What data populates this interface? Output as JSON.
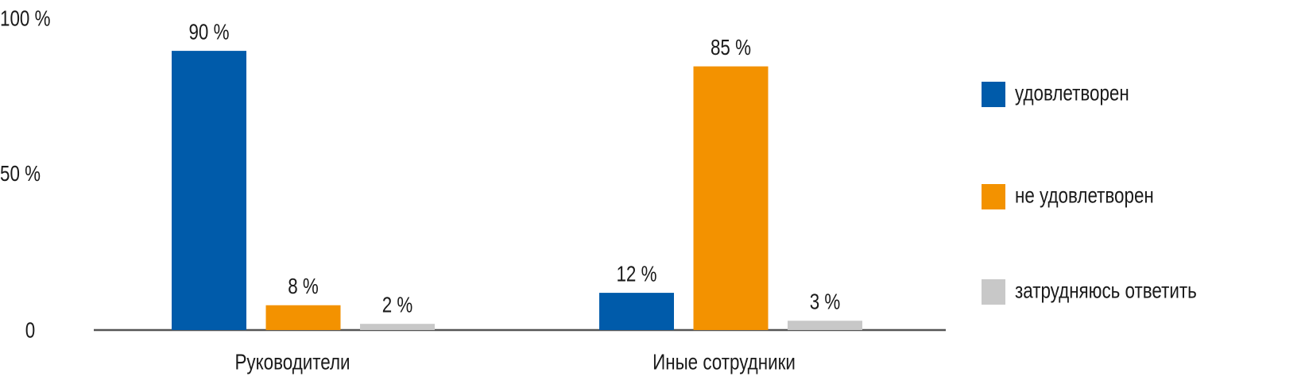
{
  "chart_data": {
    "type": "bar",
    "categories": [
      "Руководители",
      "Иные сотрудники"
    ],
    "series": [
      {
        "name": "удовлетворен",
        "values": [
          90,
          12
        ],
        "color": "#005BAA"
      },
      {
        "name": "не удовлетворен",
        "values": [
          8,
          85
        ],
        "color": "#F39200"
      },
      {
        "name": "затрудняюсь ответить",
        "values": [
          2,
          3
        ],
        "color": "#C8C8C8"
      }
    ],
    "data_labels": [
      [
        "90 %",
        "12 %"
      ],
      [
        "8 %",
        "85 %"
      ],
      [
        "2 %",
        "3 %"
      ]
    ],
    "yticks": [
      {
        "value": 0,
        "label": "0"
      },
      {
        "value": 50,
        "label": "50 %"
      },
      {
        "value": 100,
        "label": "100 %"
      }
    ],
    "ylim": [
      0,
      100
    ],
    "title": "",
    "xlabel": "",
    "ylabel": "",
    "grid": false,
    "legend_position": "right",
    "axis_color": "#555555"
  }
}
